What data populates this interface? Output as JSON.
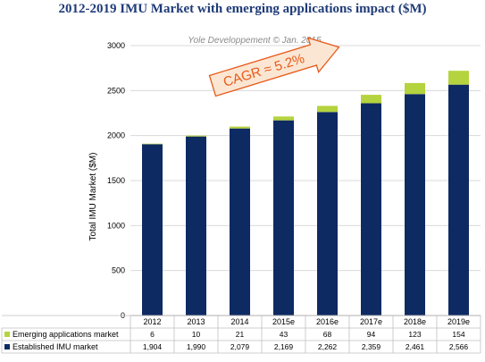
{
  "title": "2012-2019 IMU Market with emerging applications impact ($M)",
  "credit": "Yole Developpement © Jan. 2015",
  "cagr_label": "CAGR ≈ 5.2%",
  "colors": {
    "established": "#0e2a63",
    "emerging": "#b5d33e",
    "title": "#1f3b78",
    "cagr_text": "#e85a1a",
    "cagr_arrow_fill": "#fbe6d3"
  },
  "chart_data": {
    "type": "bar",
    "stacked": true,
    "categories": [
      "2012",
      "2013",
      "2014",
      "2015e",
      "2016e",
      "2017e",
      "2018e",
      "2019e"
    ],
    "series": [
      {
        "name": "Established IMU market",
        "values": [
          1904,
          1990,
          2079,
          2169,
          2262,
          2359,
          2461,
          2566
        ],
        "labels": [
          "1,904",
          "1,990",
          "2,079",
          "2,169",
          "2,262",
          "2,359",
          "2,461",
          "2,566"
        ],
        "color": "#0e2a63"
      },
      {
        "name": "Emerging applications market",
        "values": [
          6,
          10,
          21,
          43,
          68,
          94,
          123,
          154
        ],
        "labels": [
          "6",
          "10",
          "21",
          "43",
          "68",
          "94",
          "123",
          "154"
        ],
        "color": "#b5d33e"
      }
    ],
    "ylabel": "Total IMU Market ($M)",
    "ylim": [
      0,
      3000
    ],
    "yticks": [
      "0",
      "500",
      "1000",
      "1500",
      "2000",
      "2500",
      "3000"
    ],
    "grid": true,
    "data_table": true
  }
}
